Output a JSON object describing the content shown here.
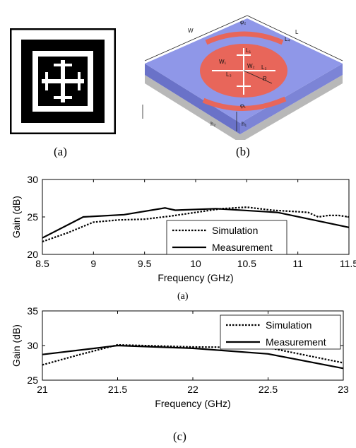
{
  "figure_a": {
    "caption": "(a)",
    "colors": {
      "frame": "#000000",
      "background": "#ffffff"
    }
  },
  "figure_b": {
    "caption": "(b)",
    "labels": [
      "W",
      "L",
      "φ₂",
      "L₁",
      "W₁",
      "W₂",
      "L₂",
      "L₄",
      "L₃",
      "R",
      "φ₁",
      "h₂",
      "h₁"
    ],
    "colors": {
      "substrate": "#8f97e8",
      "substrate_side": "#6a72c8",
      "ground": "#b8b8b8",
      "patch": "#e8665a"
    }
  },
  "chart_top": {
    "caption": "(a)",
    "chart_data": {
      "type": "line",
      "xlabel": "Frequency (GHz)",
      "ylabel": "Gain (dB)",
      "xlim": [
        8.5,
        11.5
      ],
      "ylim": [
        20,
        30
      ],
      "xticks": [
        "8.5",
        "9",
        "9.5",
        "10",
        "10.5",
        "11",
        "11.5"
      ],
      "yticks": [
        "20",
        "25",
        "30"
      ],
      "legend_placement": "lower-right",
      "grid": false,
      "series": [
        {
          "name": "Simulation",
          "style": "dotted",
          "x": [
            8.5,
            8.75,
            9.0,
            9.25,
            9.5,
            9.75,
            10.0,
            10.25,
            10.5,
            10.75,
            11.0,
            11.1,
            11.2,
            11.3,
            11.4,
            11.5
          ],
          "y": [
            21.7,
            22.9,
            24.3,
            24.6,
            24.7,
            25.1,
            25.6,
            26.1,
            26.3,
            25.9,
            25.7,
            25.6,
            25.0,
            25.2,
            25.2,
            25.0
          ]
        },
        {
          "name": "Measurement",
          "style": "solid",
          "x": [
            8.5,
            8.9,
            9.3,
            9.7,
            9.8,
            10.2,
            10.8,
            11.5
          ],
          "y": [
            22.2,
            25.0,
            25.3,
            26.2,
            25.9,
            26.1,
            25.6,
            23.6
          ]
        }
      ]
    }
  },
  "chart_bottom": {
    "caption": "(c)",
    "chart_data": {
      "type": "line",
      "xlabel": "Frequency (GHz)",
      "ylabel": "Gain (dB)",
      "xlim": [
        21,
        23
      ],
      "ylim": [
        25,
        35
      ],
      "xticks": [
        "21",
        "21.5",
        "22",
        "22.5",
        "23"
      ],
      "yticks": [
        "25",
        "30",
        "35"
      ],
      "legend_placement": "top-right",
      "grid": false,
      "series": [
        {
          "name": "Simulation",
          "style": "dotted",
          "x": [
            21.0,
            21.25,
            21.5,
            22.0,
            22.5,
            23.0
          ],
          "y": [
            27.2,
            28.7,
            30.1,
            29.8,
            29.7,
            27.5
          ]
        },
        {
          "name": "Measurement",
          "style": "solid",
          "x": [
            21.0,
            21.5,
            22.0,
            22.5,
            23.0
          ],
          "y": [
            28.7,
            30.0,
            29.6,
            28.8,
            26.7
          ]
        }
      ]
    }
  }
}
